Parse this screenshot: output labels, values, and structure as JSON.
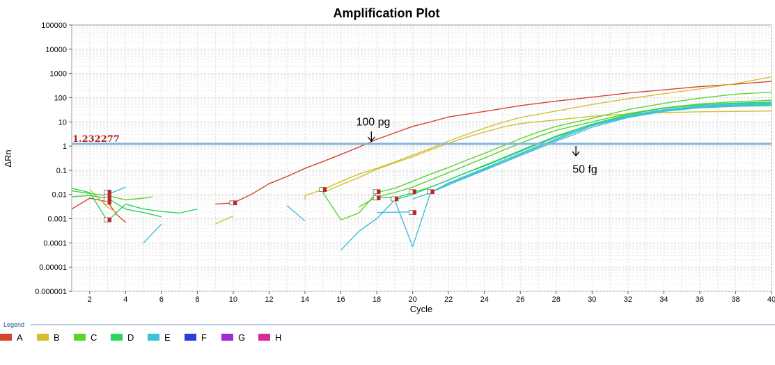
{
  "chart_data": {
    "type": "line",
    "title": "Amplification Plot",
    "xlabel": "Cycle",
    "ylabel": "ΔRn",
    "yscale": "log",
    "xlim": [
      1,
      40
    ],
    "ylim": [
      1e-06,
      100000
    ],
    "x_ticks": [
      "2",
      "4",
      "6",
      "8",
      "10",
      "12",
      "14",
      "16",
      "18",
      "20",
      "22",
      "24",
      "26",
      "28",
      "30",
      "32",
      "34",
      "36",
      "38",
      "40"
    ],
    "y_ticks": [
      "100000",
      "10000",
      "1000",
      "100",
      "10",
      "1",
      "0.1",
      "0.01",
      "0.001",
      "0.0001",
      "0.00001",
      "0.000001"
    ],
    "threshold": {
      "value": 1.232277,
      "label": "1.232277"
    },
    "annotations": [
      {
        "text": "100 pg",
        "arrow_x": 17.7,
        "arrow_y_from": 4,
        "arrow_y_to": 1.6,
        "text_x": 17.8,
        "text_y": 7
      },
      {
        "text": "50 fg",
        "arrow_x": 29.1,
        "arrow_y_from": 1.0,
        "arrow_y_to": 0.4,
        "text_x": 29.6,
        "text_y": 0.08
      }
    ],
    "grid": true,
    "legend": {
      "title": "Legend",
      "position": "bottom",
      "items": [
        {
          "label": "A",
          "color": "#d2452a"
        },
        {
          "label": "B",
          "color": "#d4be2e"
        },
        {
          "label": "C",
          "color": "#5ad42a"
        },
        {
          "label": "D",
          "color": "#2ad460"
        },
        {
          "label": "E",
          "color": "#3ec0d8"
        },
        {
          "label": "F",
          "color": "#2a3ed8"
        },
        {
          "label": "G",
          "color": "#a02ad8"
        },
        {
          "label": "H",
          "color": "#d82a9a"
        }
      ]
    },
    "series": [
      {
        "name": "A",
        "color": "#d2452a",
        "segments": [
          [
            [
              1,
              0.0025
            ],
            [
              2,
              0.007
            ],
            [
              3,
              0.005
            ],
            [
              3.5,
              0.0015
            ],
            [
              4,
              0.0007
            ]
          ],
          [
            [
              9,
              0.004
            ],
            [
              10,
              0.0045
            ],
            [
              11,
              0.01
            ],
            [
              12,
              0.028
            ],
            [
              13,
              0.055
            ],
            [
              14,
              0.12
            ],
            [
              15,
              0.23
            ],
            [
              16,
              0.45
            ],
            [
              17,
              0.9
            ],
            [
              18,
              1.9
            ],
            [
              19,
              3.5
            ],
            [
              20,
              6.5
            ],
            [
              21,
              10
            ],
            [
              22,
              16
            ],
            [
              24,
              27
            ],
            [
              26,
              47
            ],
            [
              28,
              72
            ],
            [
              30,
              105
            ],
            [
              32,
              155
            ],
            [
              34,
              210
            ],
            [
              36,
              285
            ],
            [
              38,
              360
            ],
            [
              40,
              470
            ]
          ]
        ]
      },
      {
        "name": "B",
        "color": "#d4be2e",
        "segments": [
          [
            [
              2,
              0.016
            ],
            [
              3,
              0.003
            ],
            [
              3.5,
              0.0018
            ]
          ],
          [
            [
              9,
              0.0006
            ],
            [
              10,
              0.0013
            ]
          ],
          [
            [
              14,
              0.006
            ],
            [
              14,
              0.009
            ],
            [
              15,
              0.016
            ],
            [
              16,
              0.034
            ],
            [
              17,
              0.07
            ],
            [
              18,
              0.12
            ],
            [
              19,
              0.22
            ],
            [
              20,
              0.42
            ],
            [
              21,
              0.8
            ],
            [
              22,
              1.6
            ],
            [
              23,
              3
            ],
            [
              24,
              5.5
            ],
            [
              25,
              9.5
            ],
            [
              26,
              15
            ],
            [
              28,
              28
            ],
            [
              30,
              52
            ],
            [
              32,
              90
            ],
            [
              34,
              145
            ],
            [
              36,
              230
            ],
            [
              38,
              380
            ],
            [
              40,
              720
            ]
          ],
          [
            [
              15,
              0.012
            ],
            [
              16,
              0.025
            ],
            [
              17,
              0.05
            ],
            [
              18,
              0.11
            ],
            [
              19,
              0.2
            ],
            [
              20,
              0.36
            ],
            [
              21,
              0.7
            ],
            [
              22,
              1.3
            ],
            [
              23,
              2.3
            ],
            [
              24,
              3.8
            ],
            [
              25,
              6
            ],
            [
              26,
              8.5
            ],
            [
              28,
              12
            ],
            [
              30,
              17
            ],
            [
              32,
              21
            ],
            [
              34,
              24
            ],
            [
              36,
              26
            ],
            [
              38,
              27
            ],
            [
              40,
              28
            ]
          ]
        ]
      },
      {
        "name": "C",
        "color": "#5ad42a",
        "segments": [
          [
            [
              1,
              0.014
            ],
            [
              2,
              0.011
            ],
            [
              3,
              0.009
            ],
            [
              4,
              0.006
            ],
            [
              5,
              0.007
            ],
            [
              5.5,
              0.008
            ]
          ],
          [
            [
              15,
              0.012
            ],
            [
              16,
              0.0009
            ],
            [
              17,
              0.0017
            ],
            [
              18,
              0.012
            ],
            [
              19,
              0.018
            ],
            [
              20,
              0.035
            ],
            [
              21,
              0.07
            ],
            [
              22,
              0.13
            ],
            [
              23,
              0.26
            ],
            [
              24,
              0.5
            ],
            [
              25,
              1
            ],
            [
              26,
              2
            ],
            [
              27,
              3.8
            ],
            [
              28,
              6.5
            ],
            [
              30,
              14
            ],
            [
              32,
              32
            ],
            [
              34,
              58
            ],
            [
              36,
              95
            ],
            [
              38,
              140
            ],
            [
              40,
              170
            ]
          ],
          [
            [
              17,
              0.003
            ],
            [
              18,
              0.008
            ],
            [
              19,
              0.012
            ],
            [
              20,
              0.02
            ],
            [
              21,
              0.04
            ],
            [
              22,
              0.08
            ],
            [
              23,
              0.16
            ],
            [
              24,
              0.32
            ],
            [
              25,
              0.65
            ],
            [
              26,
              1.3
            ],
            [
              27,
              2.5
            ],
            [
              28,
              4.5
            ],
            [
              30,
              10
            ],
            [
              32,
              22
            ],
            [
              34,
              38
            ],
            [
              36,
              55
            ],
            [
              38,
              68
            ],
            [
              40,
              78
            ]
          ]
        ]
      },
      {
        "name": "D",
        "color": "#2ad460",
        "segments": [
          [
            [
              1,
              0.018
            ],
            [
              2,
              0.012
            ],
            [
              3,
              0.0008
            ],
            [
              4,
              0.004
            ],
            [
              5,
              0.0025
            ],
            [
              6,
              0.002
            ],
            [
              7,
              0.0017
            ],
            [
              8,
              0.0025
            ]
          ],
          [
            [
              1,
              0.008
            ],
            [
              2,
              0.009
            ],
            [
              3,
              0.007
            ],
            [
              4,
              0.0025
            ],
            [
              5,
              0.0018
            ],
            [
              6,
              0.0012
            ]
          ],
          [
            [
              18,
              0.008
            ],
            [
              19,
              0.007
            ],
            [
              20,
              0.012
            ],
            [
              21,
              0.02
            ],
            [
              22,
              0.04
            ],
            [
              23,
              0.08
            ],
            [
              24,
              0.16
            ],
            [
              25,
              0.32
            ],
            [
              26,
              0.65
            ],
            [
              27,
              1.3
            ],
            [
              28,
              2.6
            ],
            [
              30,
              8
            ],
            [
              32,
              20
            ],
            [
              34,
              37
            ],
            [
              36,
              50
            ],
            [
              38,
              60
            ],
            [
              40,
              65
            ]
          ],
          [
            [
              19,
              0.006
            ],
            [
              20,
              0.01
            ],
            [
              21,
              0.02
            ],
            [
              22,
              0.04
            ],
            [
              23,
              0.08
            ],
            [
              24,
              0.15
            ],
            [
              25,
              0.3
            ],
            [
              26,
              0.6
            ],
            [
              27,
              1.2
            ],
            [
              28,
              2.4
            ],
            [
              30,
              7
            ],
            [
              32,
              17
            ],
            [
              34,
              30
            ],
            [
              36,
              40
            ],
            [
              38,
              46
            ],
            [
              40,
              50
            ]
          ]
        ]
      },
      {
        "name": "E",
        "color": "#3ec0d8",
        "segments": [
          [
            [
              3,
              0.01
            ],
            [
              4,
              0.02
            ]
          ],
          [
            [
              5,
              0.0001
            ],
            [
              6,
              0.0006
            ]
          ],
          [
            [
              13,
              0.0035
            ],
            [
              14,
              0.0008
            ]
          ],
          [
            [
              16,
              5e-05
            ],
            [
              17,
              0.0003
            ],
            [
              18,
              0.001
            ],
            [
              19,
              0.006
            ],
            [
              20,
              7e-05
            ],
            [
              21,
              0.012
            ],
            [
              22,
              0.03
            ],
            [
              23,
              0.06
            ],
            [
              24,
              0.12
            ],
            [
              25,
              0.25
            ],
            [
              26,
              0.5
            ],
            [
              27,
              1
            ],
            [
              28,
              2
            ],
            [
              29,
              4
            ],
            [
              30,
              7.5
            ],
            [
              32,
              18
            ],
            [
              34,
              32
            ],
            [
              36,
              45
            ],
            [
              38,
              55
            ],
            [
              40,
              60
            ]
          ],
          [
            [
              18,
              0.0018
            ],
            [
              20,
              0.0019
            ]
          ],
          [
            [
              21,
              0.012
            ],
            [
              22,
              0.025
            ],
            [
              23,
              0.05
            ],
            [
              24,
              0.1
            ],
            [
              25,
              0.2
            ],
            [
              26,
              0.4
            ],
            [
              27,
              0.8
            ],
            [
              28,
              1.6
            ],
            [
              29,
              3
            ],
            [
              30,
              6
            ],
            [
              32,
              15
            ],
            [
              34,
              27
            ],
            [
              36,
              38
            ],
            [
              38,
              44
            ],
            [
              40,
              47
            ]
          ],
          [
            [
              20,
              0.0065
            ],
            [
              21,
              0.012
            ],
            [
              22,
              0.028
            ],
            [
              23,
              0.055
            ],
            [
              24,
              0.11
            ],
            [
              25,
              0.22
            ],
            [
              26,
              0.45
            ],
            [
              27,
              0.9
            ],
            [
              28,
              1.8
            ],
            [
              29,
              3.5
            ],
            [
              30,
              7
            ],
            [
              32,
              16
            ],
            [
              34,
              30
            ],
            [
              36,
              42
            ],
            [
              38,
              50
            ],
            [
              40,
              55
            ]
          ]
        ]
      }
    ],
    "markers": [
      {
        "x": 3,
        "y": 0.0009,
        "fill": "#ffffff"
      },
      {
        "x": 3,
        "y": 0.0048,
        "fill": "#ffffff"
      },
      {
        "x": 3,
        "y": 0.0065,
        "fill": "#ffffff"
      },
      {
        "x": 3,
        "y": 0.0095,
        "fill": "#ffffff"
      },
      {
        "x": 3,
        "y": 0.0125,
        "fill": "#ffffff"
      },
      {
        "x": 10,
        "y": 0.0045,
        "fill": "#ffffff"
      },
      {
        "x": 15,
        "y": 0.016,
        "fill": "#ffffff"
      },
      {
        "x": 18,
        "y": 0.013,
        "fill": "#ffffff"
      },
      {
        "x": 18,
        "y": 0.0072,
        "fill": "#ffffff"
      },
      {
        "x": 19,
        "y": 0.0066,
        "fill": "#ffffff"
      },
      {
        "x": 20,
        "y": 0.0018,
        "fill": "#ffffff"
      },
      {
        "x": 20,
        "y": 0.013,
        "fill": "#ffffff"
      },
      {
        "x": 21,
        "y": 0.013,
        "fill": "#ffffff"
      }
    ]
  }
}
